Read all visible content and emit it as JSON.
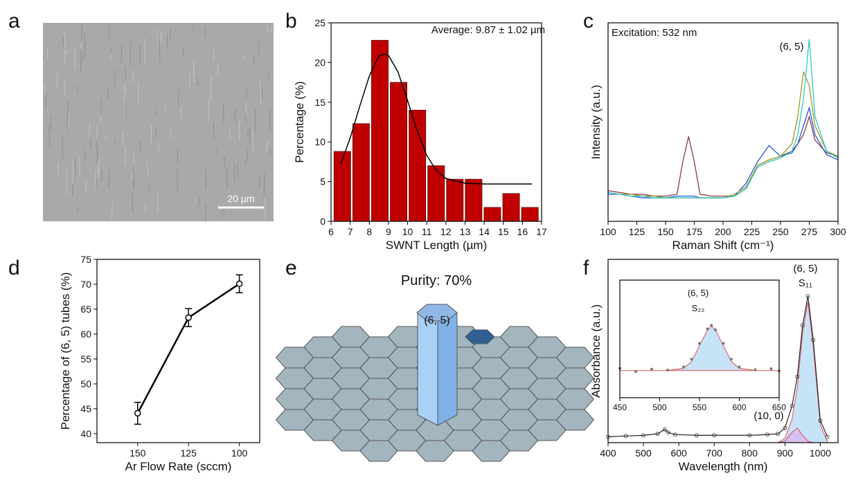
{
  "panel_labels": [
    "a",
    "b",
    "c",
    "d",
    "e",
    "f"
  ],
  "image": {
    "scale_bar": "20 µm"
  },
  "diagram": {
    "title": "Purity: 70%",
    "label": "(6, 5)"
  },
  "chart_data": [
    {
      "type": "histogram",
      "xlabel": "SWNT Length (µm)",
      "ylabel": "Percentage (%)",
      "annotations": [
        "Average: 9.87 ± 1.02  µm"
      ],
      "bins": [
        6.1,
        7.08,
        8.06,
        9.04,
        10.02,
        11.0,
        11.98,
        12.96,
        13.94,
        14.92,
        15.9,
        16.88
      ],
      "values": [
        8.8,
        12.3,
        22.8,
        17.5,
        14.0,
        7.0,
        5.3,
        5.3,
        1.75,
        3.5,
        1.75
      ],
      "color": "#c00000",
      "fit": {
        "color": "#000000",
        "x": [
          6.5,
          7,
          7.5,
          8,
          8.5,
          8.8,
          9,
          9.5,
          10,
          10.5,
          11,
          11.5,
          12,
          13,
          14,
          15,
          16,
          16.5
        ],
        "values": [
          7.2,
          10.5,
          14.5,
          18.3,
          20.8,
          21.1,
          20.9,
          18.8,
          15.2,
          11.4,
          8.3,
          6.4,
          5.4,
          4.8,
          4.7,
          4.7,
          4.7,
          4.7
        ]
      },
      "xlim": [
        6,
        17
      ],
      "xticks": [
        6,
        7,
        8,
        9,
        10,
        11,
        12,
        13,
        14,
        15,
        16,
        17
      ],
      "ylim": [
        0,
        25
      ],
      "yticks": [
        0,
        5,
        10,
        15,
        20,
        25
      ]
    },
    {
      "type": "line",
      "xlabel": "Raman Shift (cm⁻¹)",
      "ylabel": "Intensity (a.u.)",
      "annotations": [
        "Excitation: 532 nm",
        "(6, 5)"
      ],
      "x": [
        100,
        110,
        120,
        130,
        140,
        150,
        160,
        165,
        170,
        175,
        180,
        190,
        200,
        210,
        220,
        230,
        240,
        250,
        260,
        265,
        270,
        275,
        280,
        290,
        300
      ],
      "series": [
        {
          "color": "#8b3a3a",
          "values": [
            0.14,
            0.13,
            0.12,
            0.12,
            0.11,
            0.11,
            0.12,
            0.3,
            0.44,
            0.3,
            0.12,
            0.11,
            0.11,
            0.11,
            0.15,
            0.28,
            0.31,
            0.33,
            0.36,
            0.4,
            0.45,
            0.55,
            0.42,
            0.35,
            0.33
          ]
        },
        {
          "color": "#2255dd",
          "values": [
            0.12,
            0.12,
            0.11,
            0.1,
            0.1,
            0.1,
            0.11,
            0.11,
            0.11,
            0.11,
            0.1,
            0.1,
            0.1,
            0.11,
            0.18,
            0.3,
            0.39,
            0.33,
            0.35,
            0.4,
            0.5,
            0.6,
            0.45,
            0.34,
            0.31
          ]
        },
        {
          "color": "#9a9a20",
          "values": [
            0.13,
            0.12,
            0.12,
            0.11,
            0.11,
            0.1,
            0.1,
            0.1,
            0.1,
            0.1,
            0.1,
            0.1,
            0.1,
            0.12,
            0.16,
            0.28,
            0.31,
            0.33,
            0.4,
            0.55,
            0.8,
            0.72,
            0.5,
            0.36,
            0.33
          ]
        },
        {
          "color": "#2cc9c0",
          "values": [
            0.13,
            0.12,
            0.11,
            0.11,
            0.1,
            0.1,
            0.1,
            0.1,
            0.1,
            0.1,
            0.1,
            0.1,
            0.1,
            0.11,
            0.15,
            0.27,
            0.3,
            0.32,
            0.36,
            0.45,
            0.65,
            0.98,
            0.55,
            0.36,
            0.32
          ]
        }
      ],
      "xlim": [
        100,
        300
      ],
      "xticks": [
        100,
        125,
        150,
        175,
        200,
        225,
        250,
        275,
        300
      ],
      "ylim": [
        -0.03,
        1.07
      ]
    },
    {
      "type": "errorline",
      "xlabel": "Ar Flow Rate (sccm)",
      "ylabel": "Percentage of (6, 5) tubes (%)",
      "annotations": [],
      "x": [
        150,
        125,
        100
      ],
      "values": [
        44.1,
        63.3,
        70.1
      ],
      "errors": [
        2.2,
        1.8,
        1.8
      ],
      "color": "#000000",
      "xlim": [
        170,
        90
      ],
      "xticks": [
        150,
        125,
        100
      ],
      "ylim": [
        38.2,
        75
      ],
      "yticks": [
        40,
        45,
        50,
        55,
        60,
        65,
        70,
        75
      ]
    },
    {
      "type": "line",
      "xlabel": "Wavelength (nm)",
      "ylabel": "Absorbance (a.u.)",
      "annotations": [
        "(6, 5)",
        "S₁₁",
        "(10, 0)"
      ],
      "x": [
        400,
        450,
        500,
        540,
        560,
        570,
        590,
        650,
        700,
        800,
        850,
        880,
        900,
        920,
        935,
        950,
        965,
        980,
        1000,
        1020
      ],
      "series": [
        {
          "kind": "area",
          "color": "#b8dcf5",
          "values": [
            0,
            0,
            0,
            0,
            0,
            0,
            0,
            0,
            0,
            0,
            0,
            0,
            0.03,
            0.16,
            0.38,
            0.75,
            0.96,
            0.66,
            0.12,
            0.01
          ]
        },
        {
          "kind": "area",
          "color": "#d9b8f0",
          "values": [
            0,
            0,
            0,
            0,
            0,
            0,
            0,
            0,
            0,
            0,
            0,
            0,
            0.01,
            0.07,
            0.1,
            0.05,
            0.01,
            0,
            0,
            0
          ]
        },
        {
          "kind": "markers",
          "color": "#333333",
          "values": [
            0.04,
            0.045,
            0.05,
            0.06,
            0.09,
            0.07,
            0.055,
            0.05,
            0.05,
            0.05,
            0.055,
            0.06,
            0.1,
            0.25,
            0.45,
            0.8,
            1.0,
            0.7,
            0.15,
            0.04
          ]
        }
      ],
      "xlim": [
        400,
        1050
      ],
      "xticks": [
        400,
        500,
        600,
        700,
        800,
        900,
        1000
      ],
      "ylim": [
        0,
        1.25
      ]
    },
    {
      "type": "scatter",
      "xlabel": null,
      "ylabel": null,
      "annotations": [
        "(6, 5)",
        "S₂₂"
      ],
      "x": [
        450,
        470,
        490,
        510,
        530,
        540,
        550,
        560,
        565,
        570,
        580,
        590,
        600,
        620,
        640,
        650
      ],
      "series": [
        {
          "kind": "area",
          "color": "#b8dcf5",
          "values": [
            0,
            0,
            0,
            0,
            0.05,
            0.2,
            0.55,
            0.9,
            0.98,
            0.9,
            0.55,
            0.2,
            0.05,
            0,
            0,
            0
          ]
        },
        {
          "kind": "points",
          "color": "#777777",
          "values": [
            0.05,
            -0.02,
            0.03,
            0.01,
            0.08,
            0.25,
            0.6,
            0.92,
            1.0,
            0.9,
            0.6,
            0.25,
            0.08,
            0.02,
            0.04,
            -0.01
          ]
        }
      ],
      "xlim": [
        450,
        650
      ],
      "xticks": [
        450,
        500,
        550,
        600,
        650
      ],
      "ylim": [
        -0.6,
        2.0
      ]
    }
  ]
}
